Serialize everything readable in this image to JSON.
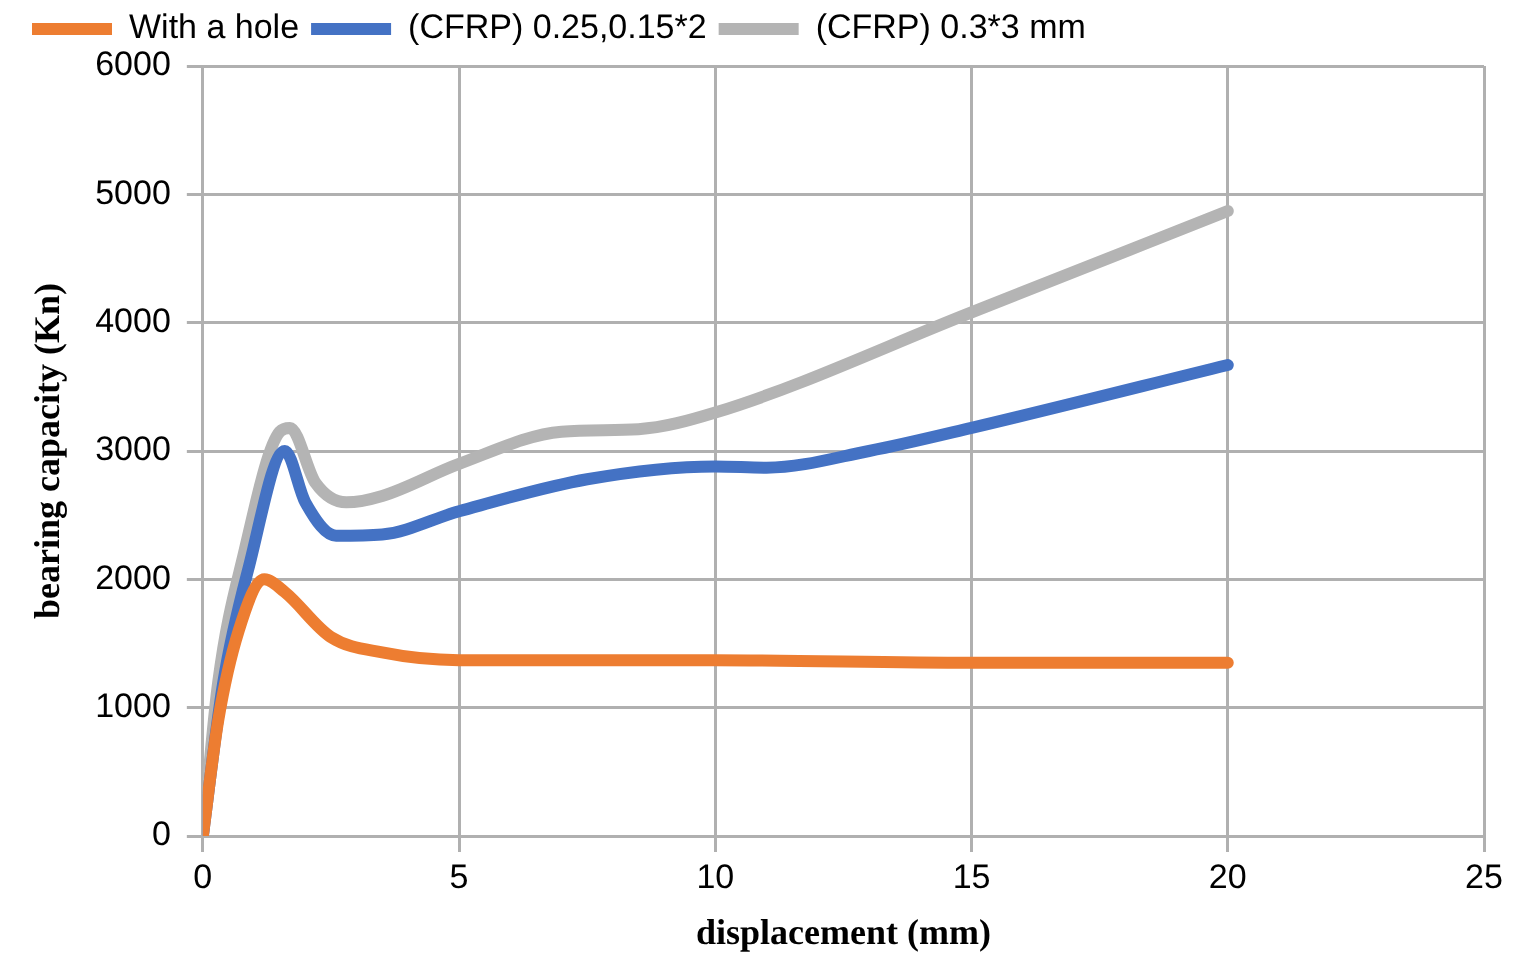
{
  "chart_data": {
    "type": "line",
    "xlabel": "displacement (mm)",
    "ylabel": "bearing capacity (Kn)",
    "xlim": [
      0,
      25
    ],
    "xticks": [
      0,
      5,
      10,
      15,
      20,
      25
    ],
    "ylim": [
      0,
      6000
    ],
    "yticks": [
      0,
      1000,
      2000,
      3000,
      4000,
      5000,
      6000
    ],
    "grid": true,
    "legend": "top",
    "marker": "none",
    "line_style": "solid",
    "series": [
      {
        "name": "With a hole",
        "color": "#ed7d31",
        "x": [
          0,
          0.3,
          0.7,
          1.2,
          1.6,
          2.5,
          3.5,
          5,
          10,
          15,
          20
        ],
        "values": [
          0,
          900,
          1600,
          2000,
          1900,
          1550,
          1430,
          1370,
          1370,
          1350,
          1350
        ]
      },
      {
        "name": "(CFRP) 0.25,0.15*2",
        "color": "#4472c4",
        "x": [
          0,
          0.4,
          0.9,
          1.6,
          2,
          2.6,
          3.5,
          5,
          7.5,
          10,
          11,
          13,
          15,
          20
        ],
        "values": [
          0,
          1200,
          2100,
          3000,
          2600,
          2340,
          2350,
          2530,
          2780,
          2880,
          2870,
          3000,
          3180,
          3670
        ]
      },
      {
        "name": "(CFRP) 0.3*3 mm",
        "color": "#b4b4b4",
        "x": [
          0,
          0.3,
          0.8,
          1.5,
          1.7,
          2.2,
          2.8,
          3.5,
          5,
          7,
          8.5,
          10,
          15,
          20
        ],
        "values": [
          0,
          1200,
          2200,
          3150,
          3180,
          2750,
          2600,
          2650,
          2900,
          3150,
          3170,
          3300,
          4080,
          4870
        ]
      }
    ]
  }
}
